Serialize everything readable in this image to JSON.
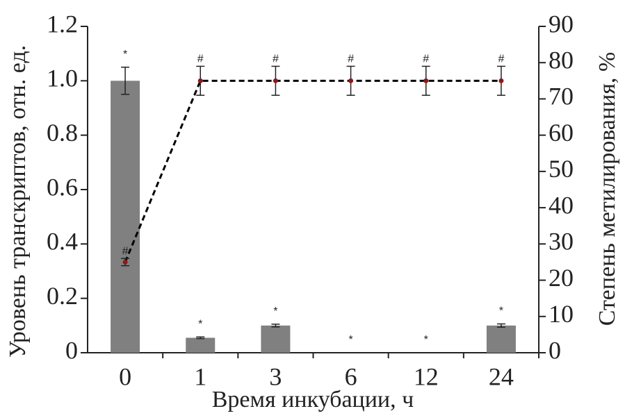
{
  "chart_data": {
    "type": "bar_line",
    "ylabel": "Уровень транскриптов, отн. ед.",
    "y2label": "Степень метилирования, %",
    "xlabel": "Время инкубации, ч",
    "categories": [
      "0",
      "1",
      "3",
      "6",
      "12",
      "24"
    ],
    "ylim": [
      0,
      1.2
    ],
    "yticks": [
      0,
      0.2,
      0.4,
      0.6,
      0.8,
      {
        "value": 1,
        "label": "1.0"
      },
      1.2
    ],
    "y2lim": [
      0,
      90
    ],
    "y2ticks": [
      0,
      10,
      20,
      30,
      40,
      50,
      60,
      70,
      80,
      90
    ],
    "series": [
      {
        "type": "bar",
        "color": "#808080",
        "values": [
          1.0,
          0.055,
          0.1,
          0,
          0,
          0.1
        ],
        "errors": [
          0.05,
          0.003,
          0.005,
          0,
          0,
          0.006
        ],
        "annotations": [
          "*",
          "*",
          "*",
          "*",
          "*",
          "*"
        ]
      },
      {
        "type": "line",
        "axis": "y2",
        "color": "#000000",
        "marker_color": "#8b1a1a",
        "values": [
          25,
          75,
          75,
          75,
          75,
          75
        ],
        "errors": [
          1,
          4,
          4,
          4,
          4,
          4
        ],
        "annotations": [
          "#",
          "#",
          "#",
          "#",
          "#",
          "#"
        ]
      }
    ]
  }
}
